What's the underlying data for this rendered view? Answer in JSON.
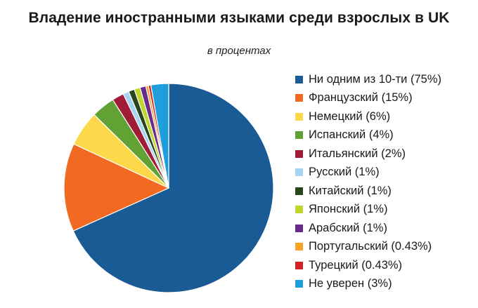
{
  "chart_data": {
    "type": "pie",
    "title": "Владение иностранными языками среди взрослых в UK",
    "subtitle": "в процентах",
    "legend_position": "right",
    "series": [
      {
        "label": "Ни одним из 10-ти (75%)",
        "value": 75,
        "color": "#1a5b96"
      },
      {
        "label": "Французский (15%)",
        "value": 15,
        "color": "#f26a21"
      },
      {
        "label": "Немецкий (6%)",
        "value": 6,
        "color": "#fcd84a"
      },
      {
        "label": "Испанский (4%)",
        "value": 4,
        "color": "#62a133"
      },
      {
        "label": "Итальянский (2%)",
        "value": 2,
        "color": "#a01d38"
      },
      {
        "label": "Русский (1%)",
        "value": 1,
        "color": "#a6d4f2"
      },
      {
        "label": "Китайский (1%)",
        "value": 1,
        "color": "#28461c"
      },
      {
        "label": "Японский (1%)",
        "value": 1,
        "color": "#bfd62e"
      },
      {
        "label": "Арабский (1%)",
        "value": 1,
        "color": "#6a2a8c"
      },
      {
        "label": "Португальский (0.43%)",
        "value": 0.43,
        "color": "#f7a128"
      },
      {
        "label": "Турецкий (0.43%)",
        "value": 0.43,
        "color": "#d2232a"
      },
      {
        "label": "Не уверен (3%)",
        "value": 3,
        "color": "#1e9fdc"
      }
    ]
  }
}
